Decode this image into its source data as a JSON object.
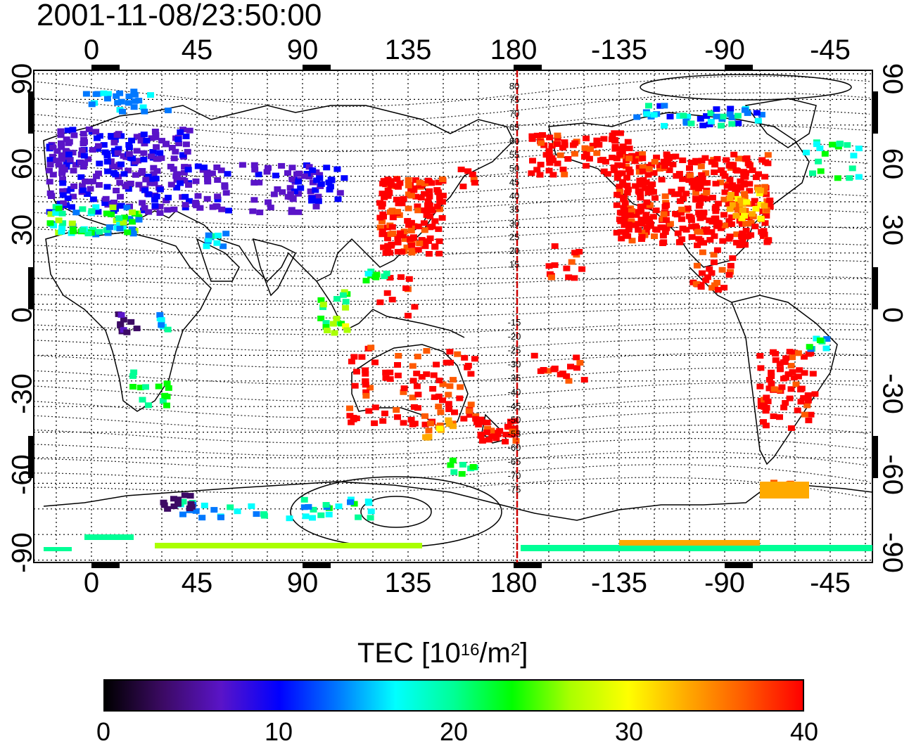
{
  "title": "2001-11-08/23:50:00",
  "map": {
    "lon_ticks": [
      "0",
      "45",
      "90",
      "135",
      "180",
      "-135",
      "-90",
      "-45"
    ],
    "lat_ticks": [
      "90",
      "60",
      "30",
      "0",
      "-30",
      "-60",
      "-90"
    ],
    "dip_latitude_labels": [
      "80",
      "75",
      "70",
      "65",
      "60",
      "55",
      "50",
      "45",
      "40",
      "35",
      "30",
      "25",
      "20",
      "15",
      "-15",
      "-20",
      "-25",
      "-30",
      "-35",
      "-40",
      "-45",
      "-50",
      "-55",
      "-60",
      "-65",
      "-70",
      "-75"
    ],
    "terminator_longitude": 181,
    "terminator_color": "#cc0000"
  },
  "colorbar": {
    "title_main": "TEC  [10",
    "title_exp1": "16",
    "title_mid": "/m",
    "title_exp2": "2",
    "title_end": "]",
    "ticks": [
      "0",
      "10",
      "20",
      "30",
      "40"
    ],
    "min": 0,
    "max": 40,
    "colors": [
      "#000000",
      "#3c0a64",
      "#5a14c8",
      "#0000ff",
      "#0078ff",
      "#00ffff",
      "#00ff96",
      "#00ff00",
      "#aaff00",
      "#ffff00",
      "#ffaa00",
      "#ff5a00",
      "#ff0000"
    ]
  }
}
